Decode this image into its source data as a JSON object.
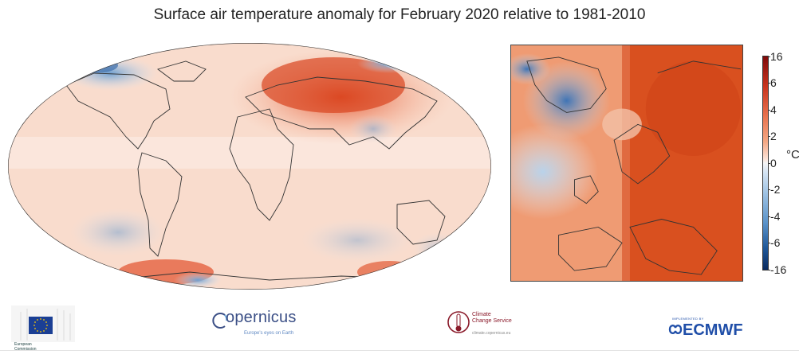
{
  "title": "Surface air temperature anomaly for February 2020 relative to 1981-2010",
  "colorbar": {
    "ticks": [
      "16",
      "6",
      "4",
      "2",
      "0",
      "-2",
      "-4",
      "-6",
      "-16"
    ],
    "unit": "°C",
    "colors": {
      "max": "#7f0a0a",
      "zero": "#f5f5f5",
      "min": "#0a2a5e"
    }
  },
  "maps": {
    "world_icon": "world-anomaly-map",
    "europe_icon": "europe-anomaly-map"
  },
  "footer": {
    "ec": {
      "icon": "european-commission-logo",
      "text_line1": "European",
      "text_line2": "Commission"
    },
    "copernicus": {
      "name": "opernicus",
      "tagline": "Europe's eyes on Earth"
    },
    "c3s": {
      "line1": "Climate",
      "line2": "Change Service",
      "url": "climate.copernicus.eu"
    },
    "ecmwf": {
      "small": "IMPLEMENTED BY",
      "name": "ECMWF"
    }
  }
}
